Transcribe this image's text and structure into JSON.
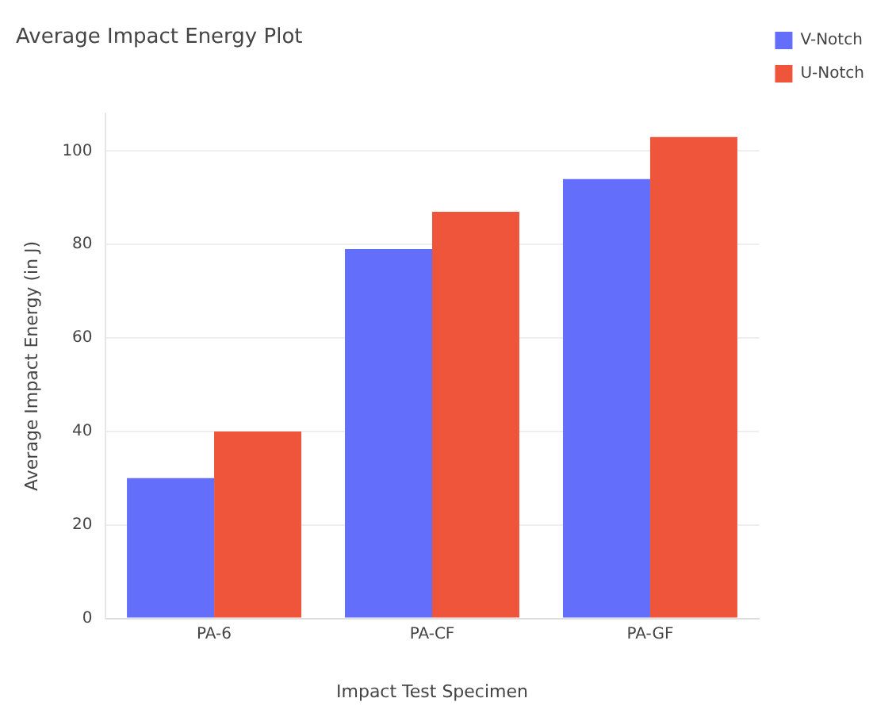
{
  "chart_data": {
    "type": "bar",
    "title": "Average Impact Energy Plot",
    "xlabel": "Impact Test Specimen",
    "ylabel": "Average Impact Energy (in J)",
    "categories": [
      "PA-6",
      "PA-CF",
      "PA-GF"
    ],
    "series": [
      {
        "name": "V-Notch",
        "color": "#636efa",
        "values": [
          30,
          79,
          94
        ]
      },
      {
        "name": "U-Notch",
        "color": "#ef553b",
        "values": [
          40,
          87,
          103
        ]
      }
    ],
    "ylim": [
      0,
      108
    ],
    "yticks": [
      0,
      20,
      40,
      60,
      80,
      100
    ],
    "grid": "y",
    "legend": "top right"
  }
}
